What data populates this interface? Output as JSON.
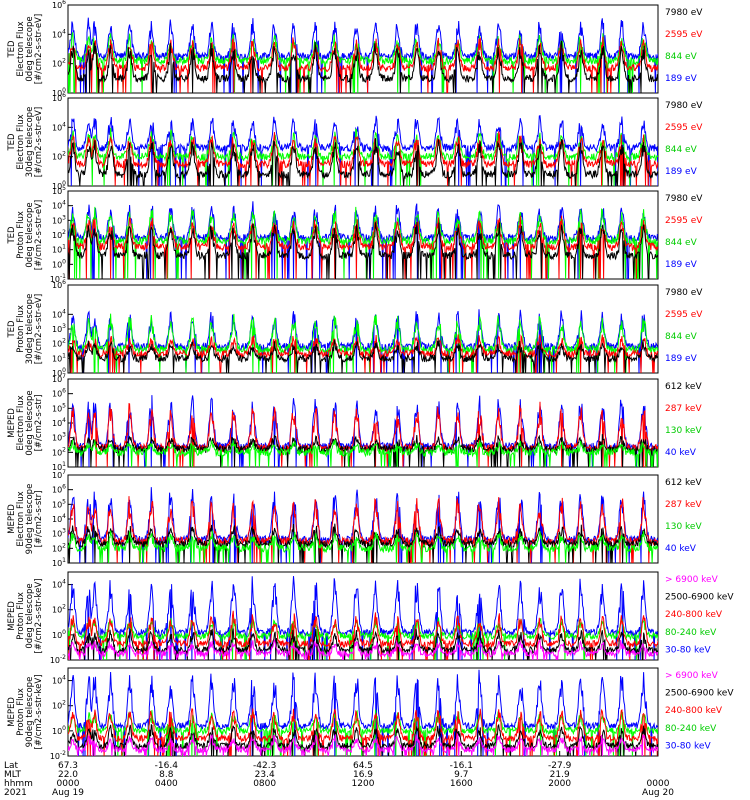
{
  "chart_data": [
    {
      "type": "line",
      "panel": "ted-electron-0deg",
      "ylabel_lines": [
        "TED",
        "Electron Flux",
        "0deg telescope",
        "[#/cm2-s-str-eV]"
      ],
      "y_ticks": [
        "10^6",
        "10^4",
        "10^2",
        "10^0"
      ],
      "ylim_log10": [
        0,
        6
      ],
      "series": [
        {
          "name": "7980 eV",
          "color": "#000000",
          "base": 1.0,
          "peak": 3.2
        },
        {
          "name": "2595 eV",
          "color": "#ff0000",
          "base": 1.7,
          "peak": 3.6
        },
        {
          "name": "844 eV",
          "color": "#00ff00",
          "base": 2.2,
          "peak": 3.8
        },
        {
          "name": "189 eV",
          "color": "#0000ff",
          "base": 2.5,
          "peak": 4.8
        }
      ]
    },
    {
      "type": "line",
      "panel": "ted-electron-30deg",
      "ylabel_lines": [
        "TED",
        "Electron Flux",
        "30deg telescope",
        "[#/cm2-s-str-eV]"
      ],
      "y_ticks": [
        "10^6",
        "10^4",
        "10^2",
        "10^0"
      ],
      "ylim_log10": [
        0,
        6
      ],
      "series": [
        {
          "name": "7980 eV",
          "color": "#000000",
          "base": 0.8,
          "peak": 3.0
        },
        {
          "name": "2595 eV",
          "color": "#ff0000",
          "base": 1.5,
          "peak": 3.4
        },
        {
          "name": "844 eV",
          "color": "#00ff00",
          "base": 2.0,
          "peak": 3.6
        },
        {
          "name": "189 eV",
          "color": "#0000ff",
          "base": 2.6,
          "peak": 4.6
        }
      ]
    },
    {
      "type": "line",
      "panel": "ted-proton-0deg",
      "ylabel_lines": [
        "TED",
        "Proton Flux",
        "0deg telescope",
        "[#/cm2-s-str-eV]"
      ],
      "y_ticks": [
        "10^5",
        "10^4",
        "10^3",
        "10^2",
        "10^1",
        "10^0",
        "10^-1"
      ],
      "ylim_log10": [
        -1,
        5
      ],
      "series": [
        {
          "name": "7980 eV",
          "color": "#000000",
          "base": 0.6,
          "peak": 2.6
        },
        {
          "name": "2595 eV",
          "color": "#ff0000",
          "base": 1.2,
          "peak": 3.0
        },
        {
          "name": "844 eV",
          "color": "#00ff00",
          "base": 1.6,
          "peak": 3.6
        },
        {
          "name": "189 eV",
          "color": "#0000ff",
          "base": 1.8,
          "peak": 4.0
        }
      ]
    },
    {
      "type": "line",
      "panel": "ted-proton-30deg",
      "ylabel_lines": [
        "TED",
        "Proton Flux",
        "30deg telescope",
        "[#/cm2-s-str-eV]"
      ],
      "y_ticks": [
        "10^6",
        "10^4",
        "10^3",
        "10^2",
        "10^1",
        "10^0"
      ],
      "ylim_log10": [
        0,
        6
      ],
      "series": [
        {
          "name": "7980 eV",
          "color": "#000000",
          "base": 1.0,
          "peak": 2.0
        },
        {
          "name": "2595 eV",
          "color": "#ff0000",
          "base": 1.3,
          "peak": 2.4
        },
        {
          "name": "844 eV",
          "color": "#00ff00",
          "base": 1.6,
          "peak": 3.8
        },
        {
          "name": "189 eV",
          "color": "#0000ff",
          "base": 1.8,
          "peak": 4.0
        }
      ]
    },
    {
      "type": "line",
      "panel": "meped-electron-0deg",
      "ylabel_lines": [
        "MEPED",
        "Electron Flux",
        "0deg telescope",
        "[#/cm2-s-str]"
      ],
      "y_ticks": [
        "10^7",
        "10^6",
        "10^5",
        "10^4",
        "10^3",
        "10^2",
        "10^1"
      ],
      "ylim_log10": [
        1,
        7
      ],
      "series": [
        {
          "name": "612 keV",
          "color": "#000000",
          "base": 2.2,
          "peak": 3.0
        },
        {
          "name": "287 keV",
          "color": "#ff0000",
          "base": 2.3,
          "peak": 5.0
        },
        {
          "name": "130 keV",
          "color": "#00ff00",
          "base": 2.0,
          "peak": 2.6
        },
        {
          "name": "40 keV",
          "color": "#0000ff",
          "base": 2.4,
          "peak": 5.6
        }
      ]
    },
    {
      "type": "line",
      "panel": "meped-electron-90deg",
      "ylabel_lines": [
        "MEPED",
        "Electron Flux",
        "90deg telescope",
        "[#/cm2-s-str]"
      ],
      "y_ticks": [
        "10^7",
        "10^6",
        "10^5",
        "10^4",
        "10^3",
        "10^2",
        "10^1"
      ],
      "ylim_log10": [
        1,
        7
      ],
      "series": [
        {
          "name": "612 keV",
          "color": "#000000",
          "base": 2.3,
          "peak": 3.4
        },
        {
          "name": "287 keV",
          "color": "#ff0000",
          "base": 2.5,
          "peak": 5.2
        },
        {
          "name": "130 keV",
          "color": "#00ff00",
          "base": 2.0,
          "peak": 3.0
        },
        {
          "name": "40 keV",
          "color": "#0000ff",
          "base": 2.6,
          "peak": 5.8
        }
      ]
    },
    {
      "type": "line",
      "panel": "meped-proton-0deg",
      "ylabel_lines": [
        "MEPED",
        "Proton Flux",
        "0deg telescope",
        "[#/cm2-s-str-keV]"
      ],
      "y_ticks": [
        "10^4",
        "10^2",
        "10^0",
        "10^-2"
      ],
      "ylim_log10": [
        -2,
        5
      ],
      "series": [
        {
          "name": "> 6900 keV",
          "color": "#ff00ff",
          "base": -1.5,
          "peak": -0.6
        },
        {
          "name": "2500-6900 keV",
          "color": "#000000",
          "base": -1.2,
          "peak": 0.2
        },
        {
          "name": "240-800 keV",
          "color": "#ff0000",
          "base": -0.7,
          "peak": 1.5
        },
        {
          "name": "80-240 keV",
          "color": "#00ff00",
          "base": -0.1,
          "peak": 1.2
        },
        {
          "name": "30-80 keV",
          "color": "#0000ff",
          "base": 0.2,
          "peak": 4.2
        }
      ]
    },
    {
      "type": "line",
      "panel": "meped-proton-90deg",
      "ylabel_lines": [
        "MEPED",
        "Proton Flux",
        "90deg telescope",
        "[#/cm2-s-str-keV]"
      ],
      "y_ticks": [
        "10^4",
        "10^2",
        "10^0",
        "10^-2"
      ],
      "ylim_log10": [
        -2,
        5
      ],
      "series": [
        {
          "name": "> 6900 keV",
          "color": "#ff00ff",
          "base": -1.5,
          "peak": -0.5
        },
        {
          "name": "2500-6900 keV",
          "color": "#000000",
          "base": -1.2,
          "peak": 0.3
        },
        {
          "name": "240-800 keV",
          "color": "#ff0000",
          "base": -0.6,
          "peak": 1.6
        },
        {
          "name": "80-240 keV",
          "color": "#00ff00",
          "base": 0.0,
          "peak": 1.4
        },
        {
          "name": "30-80 keV",
          "color": "#0000ff",
          "base": 0.4,
          "peak": 4.4
        }
      ]
    }
  ],
  "x_axis": {
    "row_labels": [
      "Lat",
      "MLT",
      "hhmm",
      "2021"
    ],
    "ticks": [
      {
        "lat": "67.3",
        "mlt": "22.0",
        "hhmm": "0000",
        "date": "Aug 19"
      },
      {
        "lat": "-16.4",
        "mlt": "8.8",
        "hhmm": "0400",
        "date": ""
      },
      {
        "lat": "-42.3",
        "mlt": "23.4",
        "hhmm": "0800",
        "date": ""
      },
      {
        "lat": "64.5",
        "mlt": "16.9",
        "hhmm": "1200",
        "date": ""
      },
      {
        "lat": "-16.1",
        "mlt": "9.7",
        "hhmm": "1600",
        "date": ""
      },
      {
        "lat": "-27.9",
        "mlt": "21.9",
        "hhmm": "2000",
        "date": ""
      },
      {
        "lat": "",
        "mlt": "",
        "hhmm": "0000",
        "date": "Aug 20"
      }
    ]
  }
}
